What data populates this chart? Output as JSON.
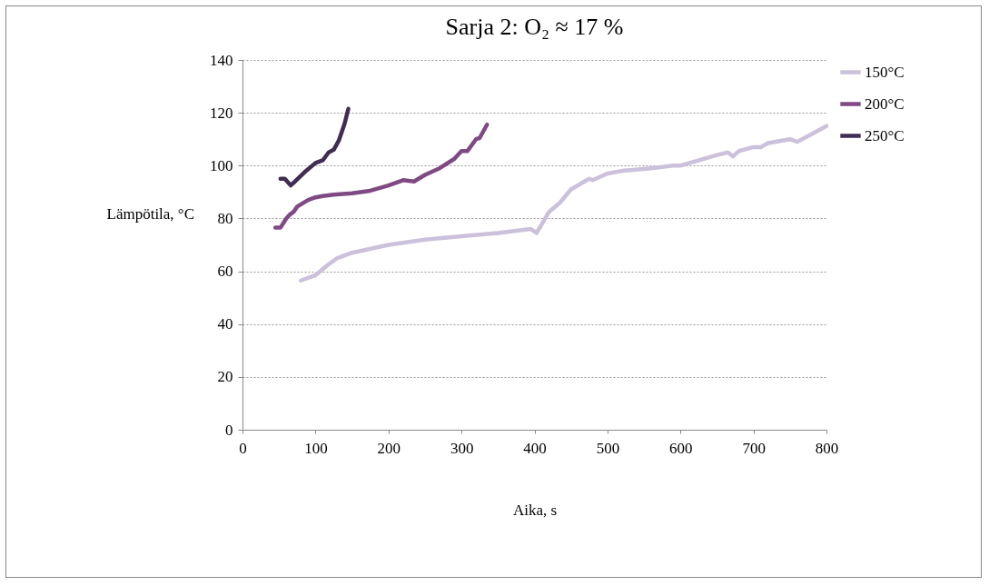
{
  "chart_data": {
    "type": "line",
    "title": "Sarja 2: O₂ ≈ 17 %",
    "xlabel": "Aika, s",
    "ylabel": "Lämpötila, °C",
    "xlim": [
      0,
      800
    ],
    "xticks": [
      0,
      100,
      200,
      300,
      400,
      500,
      600,
      700,
      800
    ],
    "ylim": [
      0,
      140
    ],
    "yticks": [
      0,
      20,
      40,
      60,
      80,
      100,
      120,
      140
    ],
    "grid": "y",
    "legend": "right",
    "line_style": "solid",
    "marker": "none",
    "series": [
      {
        "name": "150°C",
        "color": "#ccc1da",
        "x": [
          80,
          100,
          115,
          130,
          150,
          200,
          250,
          300,
          350,
          395,
          403,
          420,
          435,
          450,
          475,
          480,
          500,
          520,
          560,
          590,
          600,
          650,
          665,
          672,
          680,
          700,
          710,
          720,
          750,
          760,
          780,
          800
        ],
        "values": [
          56.5,
          58.5,
          62,
          65,
          67,
          70,
          72,
          73.3,
          74.5,
          76,
          74.5,
          82.5,
          86,
          91,
          95,
          94.5,
          97,
          98,
          99,
          100,
          100,
          104,
          105,
          103.5,
          105.5,
          107,
          107,
          108.5,
          110,
          109,
          112,
          115
        ]
      },
      {
        "name": "200°C",
        "color": "#7f4a84",
        "x": [
          45,
          52,
          60,
          65,
          70,
          75,
          90,
          100,
          110,
          125,
          150,
          175,
          200,
          220,
          235,
          250,
          270,
          290,
          300,
          308,
          320,
          325,
          335
        ],
        "values": [
          76.5,
          76.5,
          80,
          81.5,
          82.5,
          84.5,
          87,
          88,
          88.5,
          89,
          89.5,
          90.5,
          92.5,
          94.5,
          94,
          96.5,
          99,
          102.5,
          105.5,
          105.5,
          110,
          110.5,
          115.5
        ]
      },
      {
        "name": "250°C",
        "color": "#3f2d52",
        "x": [
          52,
          58,
          66,
          72,
          85,
          100,
          110,
          118,
          125,
          132,
          140,
          145
        ],
        "values": [
          95,
          95,
          92.5,
          94,
          97.5,
          101,
          102,
          105,
          106,
          109.5,
          116,
          121.5
        ]
      }
    ]
  }
}
